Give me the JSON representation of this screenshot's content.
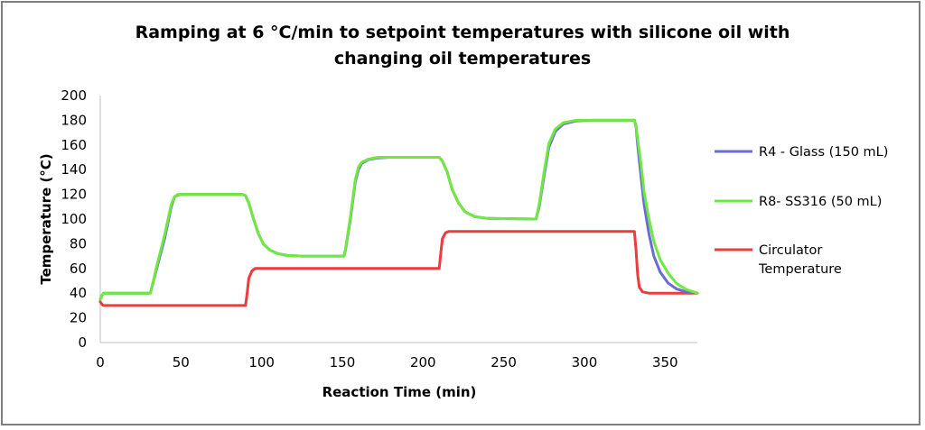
{
  "chart_data": {
    "type": "line",
    "title_line1": "Ramping at 6 °C/min to setpoint temperatures with silicone oil with",
    "title_line2": "changing oil temperatures",
    "xlabel": "Reaction Time (min)",
    "ylabel": "Temperature (°C)",
    "xlim": [
      0,
      370
    ],
    "ylim": [
      0,
      200
    ],
    "x_ticks": [
      0,
      50,
      100,
      150,
      200,
      250,
      300,
      350
    ],
    "y_ticks": [
      0,
      20,
      40,
      60,
      80,
      100,
      120,
      140,
      160,
      180,
      200
    ],
    "grid": false,
    "legend_position": "right",
    "series": [
      {
        "name": "R4 - Glass (150 mL)",
        "color": "#6b6bd6",
        "points": [
          [
            0,
            35
          ],
          [
            1,
            38
          ],
          [
            2,
            40
          ],
          [
            3,
            40
          ],
          [
            5,
            40
          ],
          [
            31,
            40
          ],
          [
            32,
            45
          ],
          [
            35,
            60
          ],
          [
            40,
            85
          ],
          [
            44,
            110
          ],
          [
            46,
            118
          ],
          [
            48,
            119.5
          ],
          [
            50,
            120
          ],
          [
            88,
            120
          ],
          [
            90,
            119
          ],
          [
            92,
            113
          ],
          [
            95,
            100
          ],
          [
            98,
            88
          ],
          [
            101,
            80
          ],
          [
            105,
            75
          ],
          [
            110,
            72
          ],
          [
            116,
            70.5
          ],
          [
            125,
            70
          ],
          [
            151,
            70
          ],
          [
            152,
            75
          ],
          [
            155,
            100
          ],
          [
            158,
            130
          ],
          [
            160,
            140
          ],
          [
            162,
            145
          ],
          [
            166,
            148
          ],
          [
            172,
            149.5
          ],
          [
            180,
            150
          ],
          [
            210,
            150
          ],
          [
            212,
            147
          ],
          [
            215,
            138
          ],
          [
            218,
            124
          ],
          [
            222,
            113
          ],
          [
            226,
            106
          ],
          [
            232,
            102
          ],
          [
            240,
            100.5
          ],
          [
            270,
            100
          ],
          [
            272,
            110
          ],
          [
            275,
            135
          ],
          [
            278,
            158
          ],
          [
            282,
            171
          ],
          [
            287,
            177
          ],
          [
            295,
            179.5
          ],
          [
            305,
            180
          ],
          [
            331,
            180
          ],
          [
            332,
            175
          ],
          [
            333,
            160
          ],
          [
            335,
            135
          ],
          [
            337,
            112
          ],
          [
            340,
            88
          ],
          [
            343,
            70
          ],
          [
            347,
            57
          ],
          [
            352,
            48
          ],
          [
            357,
            43.5
          ],
          [
            363,
            41
          ],
          [
            370,
            40
          ]
        ]
      },
      {
        "name": "R8- SS316 (50 mL)",
        "color": "#6fe840",
        "points": [
          [
            0,
            35
          ],
          [
            1,
            38
          ],
          [
            2,
            40
          ],
          [
            3,
            40
          ],
          [
            5,
            40
          ],
          [
            31,
            40
          ],
          [
            32,
            45
          ],
          [
            35,
            62
          ],
          [
            40,
            88
          ],
          [
            44,
            112
          ],
          [
            46,
            118
          ],
          [
            48,
            120
          ],
          [
            50,
            120
          ],
          [
            88,
            120
          ],
          [
            90,
            119
          ],
          [
            92,
            113
          ],
          [
            95,
            100
          ],
          [
            98,
            88
          ],
          [
            101,
            80
          ],
          [
            105,
            75
          ],
          [
            110,
            72
          ],
          [
            116,
            70.5
          ],
          [
            125,
            70
          ],
          [
            151,
            70
          ],
          [
            152,
            76
          ],
          [
            155,
            102
          ],
          [
            158,
            132
          ],
          [
            160,
            142
          ],
          [
            162,
            146
          ],
          [
            166,
            148.5
          ],
          [
            172,
            150
          ],
          [
            180,
            150
          ],
          [
            210,
            150
          ],
          [
            212,
            147
          ],
          [
            215,
            138
          ],
          [
            218,
            124
          ],
          [
            222,
            113
          ],
          [
            226,
            106
          ],
          [
            232,
            102
          ],
          [
            240,
            100.5
          ],
          [
            270,
            100
          ],
          [
            272,
            112
          ],
          [
            275,
            138
          ],
          [
            278,
            161
          ],
          [
            282,
            173
          ],
          [
            287,
            178
          ],
          [
            295,
            180
          ],
          [
            305,
            180
          ],
          [
            331,
            180
          ],
          [
            332,
            176
          ],
          [
            333,
            165
          ],
          [
            335,
            145
          ],
          [
            337,
            122
          ],
          [
            340,
            100
          ],
          [
            343,
            82
          ],
          [
            347,
            67
          ],
          [
            352,
            56
          ],
          [
            357,
            48
          ],
          [
            363,
            43
          ],
          [
            370,
            40
          ]
        ]
      },
      {
        "name": "Circulator Temperature",
        "color": "#ee3b3b",
        "points": [
          [
            0,
            33
          ],
          [
            1,
            31
          ],
          [
            2,
            30
          ],
          [
            5,
            30
          ],
          [
            90,
            30
          ],
          [
            91,
            40
          ],
          [
            92,
            52
          ],
          [
            94,
            58
          ],
          [
            96,
            60
          ],
          [
            150,
            60
          ],
          [
            210,
            60
          ],
          [
            211,
            72
          ],
          [
            212,
            84
          ],
          [
            214,
            89
          ],
          [
            216,
            90
          ],
          [
            270,
            90
          ],
          [
            331,
            90
          ],
          [
            332,
            75
          ],
          [
            333,
            55
          ],
          [
            334,
            45
          ],
          [
            336,
            41
          ],
          [
            340,
            40
          ],
          [
            370,
            40
          ]
        ]
      }
    ]
  }
}
